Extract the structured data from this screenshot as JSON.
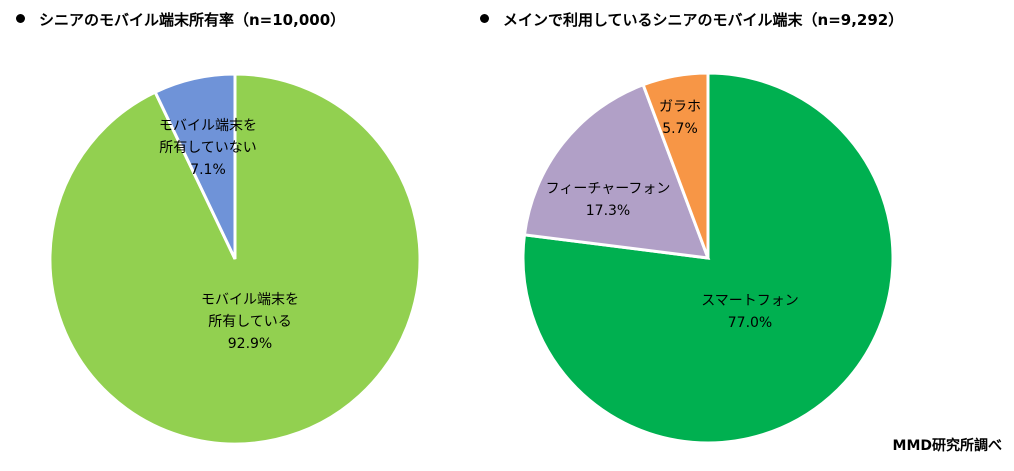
{
  "chart_data": [
    {
      "type": "pie",
      "title": "シニアのモバイル端末所有率（n=10,000）",
      "slices": [
        {
          "label_lines": [
            "モバイル端末を",
            "所有している"
          ],
          "value": 92.9,
          "value_label": "92.9%",
          "color": "#92d050"
        },
        {
          "label_lines": [
            "モバイル端末を",
            "所有していない"
          ],
          "value": 7.1,
          "value_label": "7.1%",
          "color": "#6f93d8"
        }
      ]
    },
    {
      "type": "pie",
      "title": "メインで利用しているシニアのモバイル端末（n=9,292）",
      "slices": [
        {
          "label_lines": [
            "スマートフォン"
          ],
          "value": 77.0,
          "value_label": "77.0%",
          "color": "#00b050"
        },
        {
          "label_lines": [
            "フィーチャーフォン"
          ],
          "value": 17.3,
          "value_label": "17.3%",
          "color": "#b1a0c7"
        },
        {
          "label_lines": [
            "ガラホ"
          ],
          "value": 5.7,
          "value_label": "5.7%",
          "color": "#f79646"
        }
      ]
    }
  ],
  "source_note": "MMD研究所調べ"
}
